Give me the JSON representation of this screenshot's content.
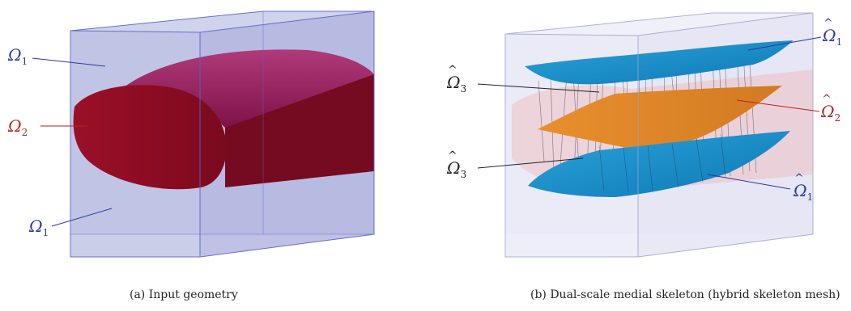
{
  "panel_a": {
    "caption": "(a) Input geometry",
    "labels": {
      "top": {
        "base": "Ω",
        "sub": "1",
        "hat": ""
      },
      "middle": {
        "base": "Ω",
        "sub": "2",
        "hat": ""
      },
      "bottom": {
        "base": "Ω",
        "sub": "1",
        "hat": ""
      }
    }
  },
  "panel_b": {
    "caption": "(b) Dual-scale medial skeleton (hybrid skeleton mesh)",
    "labels": {
      "top_right": {
        "base": "Ω",
        "sub": "1",
        "hat": "^"
      },
      "left_upper": {
        "base": "Ω",
        "sub": "3",
        "hat": "^"
      },
      "right_middle": {
        "base": "Ω",
        "sub": "2",
        "hat": "^"
      },
      "left_lower": {
        "base": "Ω",
        "sub": "3",
        "hat": "^"
      },
      "bottom_right": {
        "base": "Ω",
        "sub": "1",
        "hat": "^"
      }
    }
  },
  "colors": {
    "box_fill": "#b7bce0",
    "box_edge": "#5a63c9",
    "cylinder": "#8b1030",
    "cylinder_top": "#8a1c55",
    "sheet_blue": "#1a8fc9",
    "sheet_orange": "#e0852b",
    "label_blue": "#2b3a9e",
    "label_red": "#b3261e"
  }
}
